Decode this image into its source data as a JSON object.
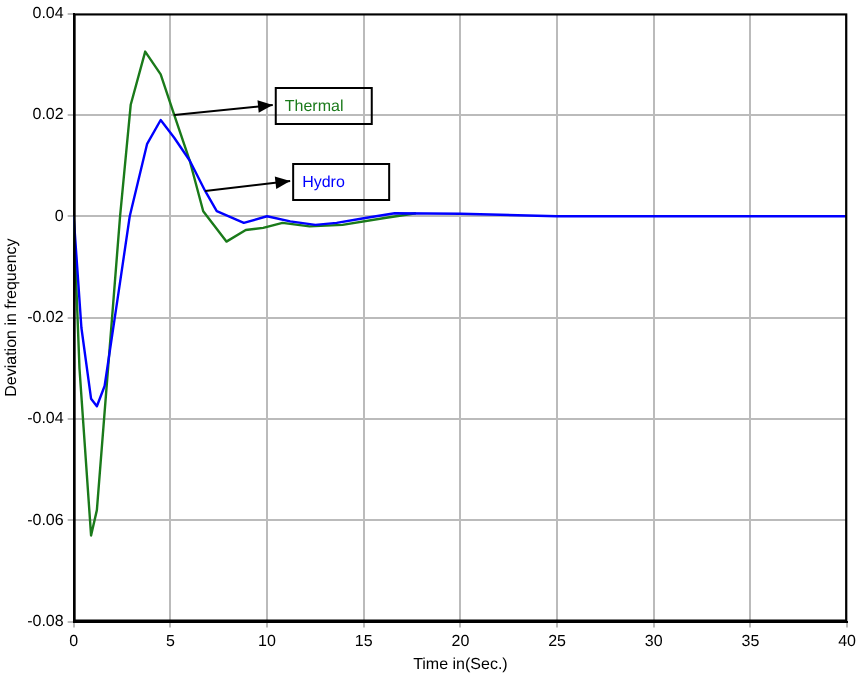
{
  "chart_data": {
    "type": "line",
    "xlabel": "Time in(Sec.)",
    "ylabel": "Deviation in frequency",
    "xlim": [
      0,
      40
    ],
    "xticks": [
      0,
      5,
      10,
      15,
      20,
      25,
      30,
      35,
      40
    ],
    "ylim": [
      -0.08,
      0.04
    ],
    "yticks": [
      -0.08,
      -0.06,
      -0.04,
      -0.02,
      0,
      0.02,
      0.04
    ],
    "grid": true,
    "legend": false,
    "marker": "none",
    "line_style": "solid",
    "series": [
      {
        "name": "Thermal",
        "color": "#1a7a1a",
        "x": [
          0,
          0.3,
          0.9,
          1.2,
          2.4,
          2.95,
          3.7,
          4.5,
          5.2,
          6,
          6.7,
          7.9,
          8.9,
          9.8,
          10.8,
          12.2,
          13.9,
          16,
          17.7
        ],
        "values": [
          0,
          -0.03,
          -0.063,
          -0.058,
          0,
          0.022,
          0.0325,
          0.028,
          0.02,
          0.011,
          0.001,
          -0.005,
          -0.0027,
          -0.0023,
          -0.0013,
          -0.002,
          -0.0017,
          -0.0004,
          0.0006
        ]
      },
      {
        "name": "Hydro",
        "color": "#0000ff",
        "x": [
          0,
          0.4,
          0.9,
          1.2,
          1.6,
          2.4,
          2.9,
          3.8,
          4.5,
          5.2,
          6,
          6.8,
          7.4,
          8.8,
          10,
          11.2,
          12.5,
          13.6,
          15,
          16.6,
          20,
          25,
          40
        ],
        "values": [
          0,
          -0.022,
          -0.036,
          -0.0375,
          -0.0335,
          -0.013,
          0,
          0.0143,
          0.019,
          0.0155,
          0.011,
          0.005,
          0.001,
          -0.0013,
          0,
          -0.001,
          -0.0017,
          -0.0013,
          -0.0004,
          0.0006,
          0.0005,
          0,
          0
        ]
      }
    ]
  }
}
